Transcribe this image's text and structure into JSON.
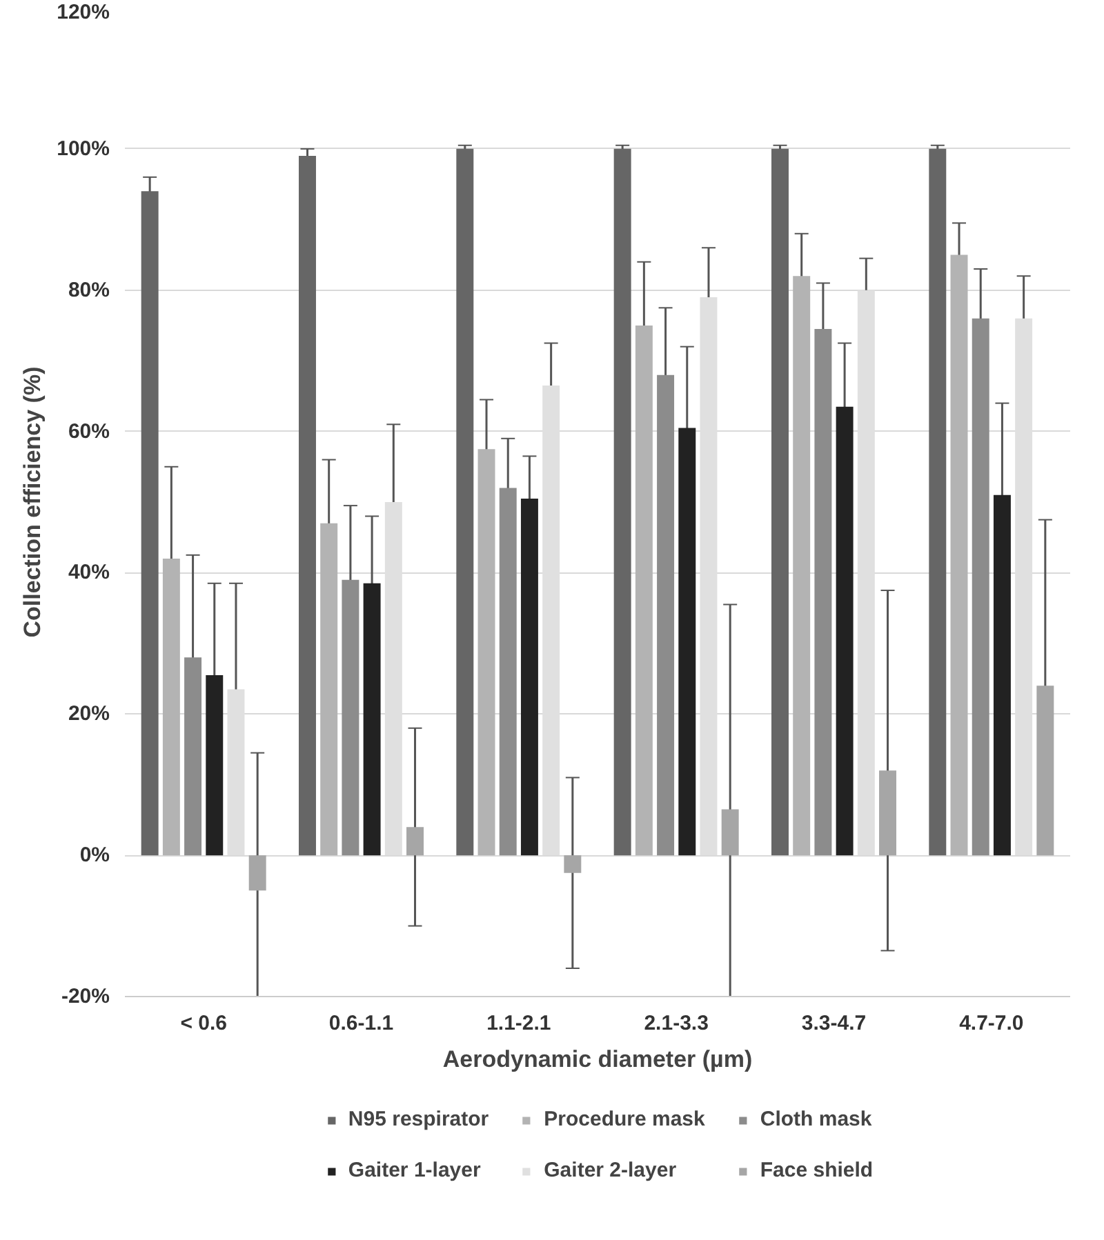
{
  "chart_data": {
    "type": "bar",
    "xlabel": "Aerodynamic diameter (µm)",
    "ylabel": "Collection efficiency (%)",
    "categories": [
      "< 0.6",
      "0.6-1.1",
      "1.1-2.1",
      "2.1-3.3",
      "3.3-4.7",
      "4.7-7.0"
    ],
    "ylim": [
      -20,
      120
    ],
    "yticks": [
      {
        "value": -20,
        "label": "-20%"
      },
      {
        "value": 0,
        "label": "0%"
      },
      {
        "value": 20,
        "label": "20%"
      },
      {
        "value": 40,
        "label": "40%"
      },
      {
        "value": 60,
        "label": "60%"
      },
      {
        "value": 80,
        "label": "80%"
      },
      {
        "value": 100,
        "label": "100%"
      },
      {
        "value": 120,
        "label": "120%"
      }
    ],
    "grid": "y",
    "legend": "bottom",
    "series": [
      {
        "name": "N95 respirator",
        "color": "#666666",
        "values": [
          94,
          99,
          100,
          100,
          100,
          100
        ],
        "errors": [
          2,
          1,
          0.5,
          0.5,
          0.5,
          0.5
        ]
      },
      {
        "name": "Procedure mask",
        "color": "#b3b3b3",
        "values": [
          42,
          47,
          57.5,
          75,
          82,
          85
        ],
        "errors": [
          13,
          9,
          7,
          9,
          6,
          4.5
        ]
      },
      {
        "name": "Cloth mask",
        "color": "#8c8c8c",
        "values": [
          28,
          39,
          52,
          68,
          74.5,
          76
        ],
        "errors": [
          14.5,
          10.5,
          7,
          9.5,
          6.5,
          7
        ]
      },
      {
        "name": "Gaiter 1-layer",
        "color": "#222222",
        "values": [
          25.5,
          38.5,
          50.5,
          60.5,
          63.5,
          51
        ],
        "errors": [
          13,
          9.5,
          6,
          11.5,
          9,
          13
        ]
      },
      {
        "name": "Gaiter 2-layer",
        "color": "#e0e0e0",
        "values": [
          23.5,
          50,
          66.5,
          79,
          80,
          76
        ],
        "errors": [
          15,
          11,
          6,
          7,
          4.5,
          6
        ]
      },
      {
        "name": "Face shield",
        "color": "#a6a6a6",
        "values": [
          -5,
          4,
          -2.5,
          6.5,
          12,
          24
        ],
        "errors": [
          19.5,
          14,
          13.5,
          29,
          25.5,
          23.5
        ]
      }
    ]
  }
}
